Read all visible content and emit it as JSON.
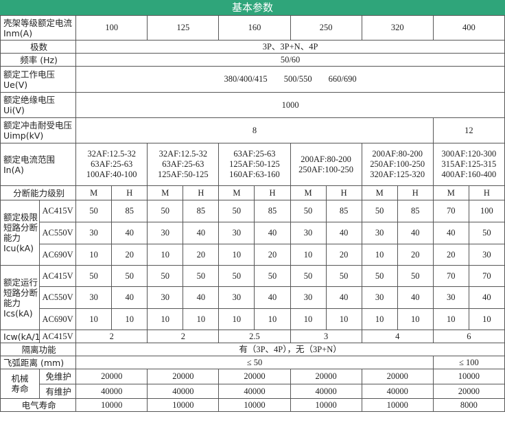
{
  "title": "基本参数",
  "frame_current": {
    "label": "壳架等级额定电流 Inm(A)",
    "values": [
      "100",
      "125",
      "160",
      "250",
      "320",
      "400"
    ]
  },
  "poles": {
    "label": "极数",
    "value": "3P、3P+N、4P"
  },
  "frequency": {
    "label": "频率 (Hz)",
    "value": "50/60"
  },
  "rated_voltage": {
    "label": "额定工作电压 Ue(V)",
    "values": [
      "380/400/415",
      "500/550",
      "660/690"
    ]
  },
  "insulation_voltage": {
    "label": "额定绝缘电压 Ui(V)",
    "value": "1000"
  },
  "impulse_voltage": {
    "label": "额定冲击耐受电压 Uimp(kV)",
    "values": [
      "8",
      "12"
    ]
  },
  "current_range": {
    "label": "额定电流范围 In(A)",
    "values": [
      [
        "32AF:12.5-32",
        "63AF:25-63",
        "100AF:40-100"
      ],
      [
        "32AF:12.5-32",
        "63AF:25-63",
        "125AF:50-125"
      ],
      [
        "63AF:25-63",
        "125AF:50-125",
        "160AF:63-160"
      ],
      [
        "200AF:80-200",
        "250AF:100-250"
      ],
      [
        "200AF:80-200",
        "250AF:100-250",
        "320AF:125-320"
      ],
      [
        "300AF:120-300",
        "315AF:125-315",
        "400AF:160-400"
      ]
    ]
  },
  "breaking_level": {
    "label": "分断能力级别",
    "values": [
      "M",
      "H",
      "M",
      "H",
      "M",
      "H",
      "M",
      "H",
      "M",
      "H",
      "M",
      "H"
    ]
  },
  "icu": {
    "label": "额定极限短路分断能力Icu(kA)",
    "rows": [
      {
        "voltage": "AC415V",
        "values": [
          "50",
          "85",
          "50",
          "85",
          "50",
          "85",
          "50",
          "85",
          "50",
          "85",
          "70",
          "100"
        ]
      },
      {
        "voltage": "AC550V",
        "values": [
          "30",
          "40",
          "30",
          "40",
          "30",
          "40",
          "30",
          "40",
          "30",
          "40",
          "40",
          "50"
        ]
      },
      {
        "voltage": "AC690V",
        "values": [
          "10",
          "20",
          "10",
          "20",
          "10",
          "20",
          "10",
          "20",
          "10",
          "20",
          "20",
          "30"
        ]
      }
    ]
  },
  "ics": {
    "label": "额定运行短路分断能力Ics(kA)",
    "rows": [
      {
        "voltage": "AC415V",
        "values": [
          "50",
          "50",
          "50",
          "50",
          "50",
          "50",
          "50",
          "50",
          "50",
          "50",
          "70",
          "70"
        ]
      },
      {
        "voltage": "AC550V",
        "values": [
          "30",
          "40",
          "30",
          "40",
          "30",
          "40",
          "30",
          "40",
          "30",
          "40",
          "30",
          "40"
        ]
      },
      {
        "voltage": "AC690V",
        "values": [
          "10",
          "10",
          "10",
          "10",
          "10",
          "10",
          "10",
          "10",
          "10",
          "10",
          "10",
          "10"
        ]
      }
    ]
  },
  "icw": {
    "label": "Icw(kA/1s)",
    "voltage": "AC415V",
    "values": [
      "2",
      "2",
      "2.5",
      "3",
      "4",
      "6"
    ]
  },
  "isolation": {
    "label": "隔离功能",
    "value": "有（3P、4P），无（3P+N）"
  },
  "arc_distance": {
    "label": "飞弧距离 (mm)",
    "values": [
      "≤ 50",
      "≤ 100"
    ]
  },
  "mechanical_life": {
    "label": "机械寿命",
    "rows": [
      {
        "type": "免维护",
        "values": [
          "20000",
          "20000",
          "20000",
          "20000",
          "20000",
          "10000"
        ]
      },
      {
        "type": "有维护",
        "values": [
          "40000",
          "40000",
          "40000",
          "40000",
          "40000",
          "20000"
        ]
      }
    ]
  },
  "electrical_life": {
    "label": "电气寿命",
    "values": [
      "10000",
      "10000",
      "10000",
      "10000",
      "10000",
      "8000"
    ]
  }
}
